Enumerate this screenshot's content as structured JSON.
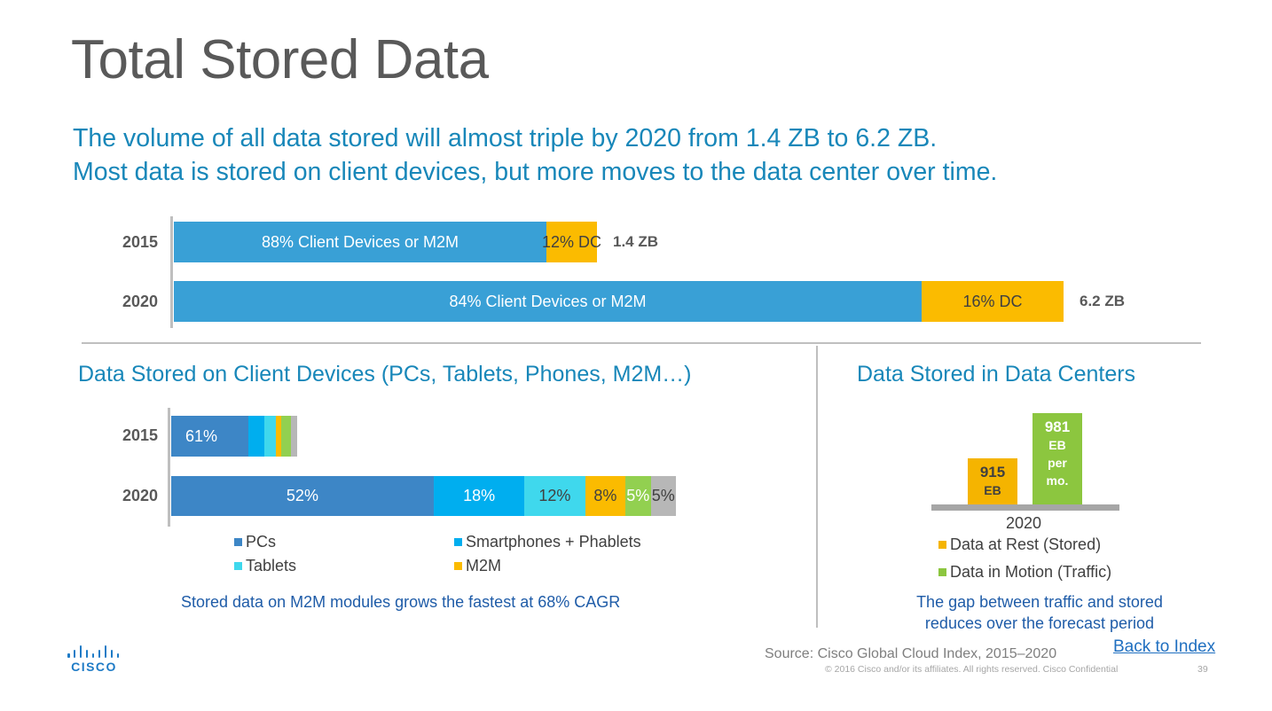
{
  "slide": {
    "title": "Total Stored Data",
    "subtitle_line1": "The volume of all data stored will almost triple by 2020 from 1.4 ZB to 6.2 ZB.",
    "subtitle_line2": "Most data is stored on client devices, but more moves to the data center over time.",
    "source": "Source: Cisco Global Cloud Index, 2015–2020",
    "copyright": "© 2016  Cisco and/or its affiliates. All rights reserved.   Cisco Confidential",
    "page_number": "39",
    "back_link": "Back to Index",
    "logo_text": "CISCO"
  },
  "colors": {
    "client": "#39a0d6",
    "dc": "#fbbb00",
    "pcs": "#3d86c6",
    "smartphones": "#00aeef",
    "tablets": "#3fd8ed",
    "m2m": "#fbbb00",
    "other_green": "#92d050",
    "other_gray": "#b7b7b7",
    "data_at_rest": "#f5b400",
    "data_in_motion": "#8cc63f",
    "accent_text": "#1887b9"
  },
  "total_chart": {
    "rows": [
      {
        "year": "2015",
        "total_label": "1.4 ZB",
        "total_zb": 1.4,
        "segments": [
          {
            "label": "88% Client Devices or M2M",
            "share": 0.88,
            "color_key": "client",
            "text_color": "#ffffff"
          },
          {
            "label": "12% DC",
            "share": 0.12,
            "color_key": "dc",
            "text_color": "#404040"
          }
        ]
      },
      {
        "year": "2020",
        "total_label": "6.2 ZB",
        "total_zb": 6.2,
        "segments": [
          {
            "label": "84% Client Devices or M2M",
            "share": 0.84,
            "color_key": "client",
            "text_color": "#ffffff"
          },
          {
            "label": "16% DC",
            "share": 0.16,
            "color_key": "dc",
            "text_color": "#404040"
          }
        ]
      }
    ]
  },
  "client_chart": {
    "title": "Data Stored on Client Devices (PCs, Tablets, Phones, M2M…)",
    "rows": [
      {
        "year": "2015",
        "relative_total": 0.25,
        "segments": [
          {
            "label": "61%",
            "share": 0.61,
            "color_key": "pcs",
            "text_color": "#ffffff"
          },
          {
            "label": "",
            "share": 0.13,
            "color_key": "smartphones",
            "text_color": "#ffffff"
          },
          {
            "label": "",
            "share": 0.09,
            "color_key": "tablets",
            "text_color": "#404040"
          },
          {
            "label": "",
            "share": 0.04,
            "color_key": "m2m",
            "text_color": "#404040"
          },
          {
            "label": "",
            "share": 0.08,
            "color_key": "other_green",
            "text_color": "#404040"
          },
          {
            "label": "",
            "share": 0.05,
            "color_key": "other_gray",
            "text_color": "#404040"
          }
        ]
      },
      {
        "year": "2020",
        "relative_total": 1.0,
        "segments": [
          {
            "label": "52%",
            "share": 0.52,
            "color_key": "pcs",
            "text_color": "#ffffff"
          },
          {
            "label": "18%",
            "share": 0.18,
            "color_key": "smartphones",
            "text_color": "#ffffff"
          },
          {
            "label": "12%",
            "share": 0.12,
            "color_key": "tablets",
            "text_color": "#404040"
          },
          {
            "label": "8%",
            "share": 0.08,
            "color_key": "m2m",
            "text_color": "#404040"
          },
          {
            "label": "5%",
            "share": 0.05,
            "color_key": "other_green",
            "text_color": "#ffffff"
          },
          {
            "label": "5%",
            "share": 0.05,
            "color_key": "other_gray",
            "text_color": "#404040"
          }
        ]
      }
    ],
    "legend": [
      {
        "label": "PCs",
        "color_key": "pcs"
      },
      {
        "label": "Smartphones + Phablets",
        "color_key": "smartphones"
      },
      {
        "label": "Tablets",
        "color_key": "tablets"
      },
      {
        "label": "M2M",
        "color_key": "m2m"
      }
    ],
    "note": "Stored data on M2M modules grows the fastest at 68% CAGR"
  },
  "dc_chart": {
    "title": "Data Stored in Data Centers",
    "category": "2020",
    "ylim": [
      0,
      1000
    ],
    "bars": [
      {
        "value": 915,
        "lines": [
          "915",
          "EB"
        ],
        "color_key": "data_at_rest",
        "text_color": "#404040"
      },
      {
        "value": 981,
        "lines": [
          "981",
          "EB",
          "per",
          "mo."
        ],
        "color_key": "data_in_motion",
        "text_color": "#ffffff"
      }
    ],
    "legend": [
      {
        "label": "Data at Rest (Stored)",
        "color_key": "data_at_rest"
      },
      {
        "label": "Data in Motion (Traffic)",
        "color_key": "data_in_motion"
      }
    ],
    "note_line1": "The gap between traffic and stored",
    "note_line2": "reduces over the forecast period"
  },
  "chart_data": [
    {
      "type": "bar",
      "orientation": "horizontal-stacked",
      "categories": [
        "2015",
        "2020"
      ],
      "series": [
        {
          "name": "Client Devices or M2M",
          "values": [
            88,
            84
          ]
        },
        {
          "name": "DC",
          "values": [
            12,
            16
          ]
        }
      ],
      "totals": [
        "1.4 ZB",
        "6.2 ZB"
      ]
    },
    {
      "type": "bar",
      "orientation": "horizontal-stacked",
      "title": "Data Stored on Client Devices (PCs, Tablets, Phones, M2M…)",
      "categories": [
        "2015",
        "2020"
      ],
      "series": [
        {
          "name": "PCs",
          "values": [
            61,
            52
          ]
        },
        {
          "name": "Smartphones + Phablets",
          "values": [
            13,
            18
          ]
        },
        {
          "name": "Tablets",
          "values": [
            9,
            12
          ]
        },
        {
          "name": "M2M",
          "values": [
            4,
            8
          ]
        }
      ],
      "legend_position": "bottom"
    },
    {
      "type": "bar",
      "title": "Data Stored in Data Centers",
      "categories": [
        "2020"
      ],
      "series": [
        {
          "name": "Data at Rest (Stored)",
          "values": [
            915
          ]
        },
        {
          "name": "Data in Motion (Traffic)",
          "values": [
            981
          ]
        }
      ],
      "legend_position": "bottom"
    }
  ]
}
